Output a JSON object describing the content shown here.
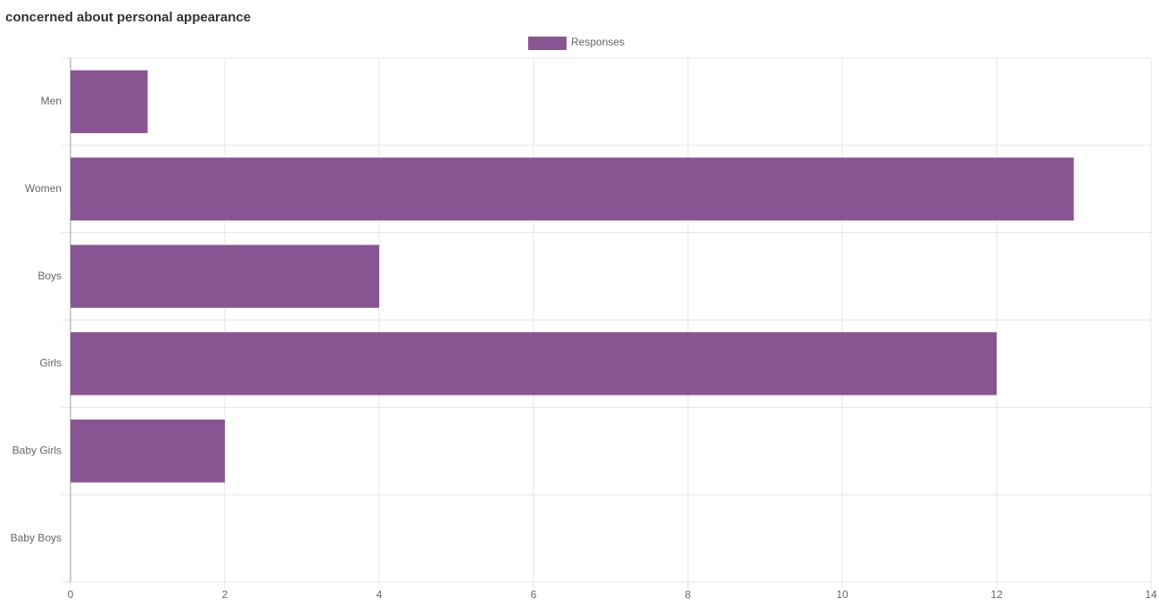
{
  "chart_data": {
    "type": "bar",
    "orientation": "horizontal",
    "title": "concerned about personal appearance",
    "categories": [
      "Men",
      "Women",
      "Boys",
      "Girls",
      "Baby Girls",
      "Baby Boys"
    ],
    "series": [
      {
        "name": "Responses",
        "color": "#885592",
        "values": [
          1,
          13,
          4,
          12,
          2,
          0
        ]
      }
    ],
    "xlim": [
      0,
      14
    ],
    "xticks": [
      0,
      2,
      4,
      6,
      8,
      10,
      12,
      14
    ],
    "grid": true,
    "legend": "top"
  }
}
